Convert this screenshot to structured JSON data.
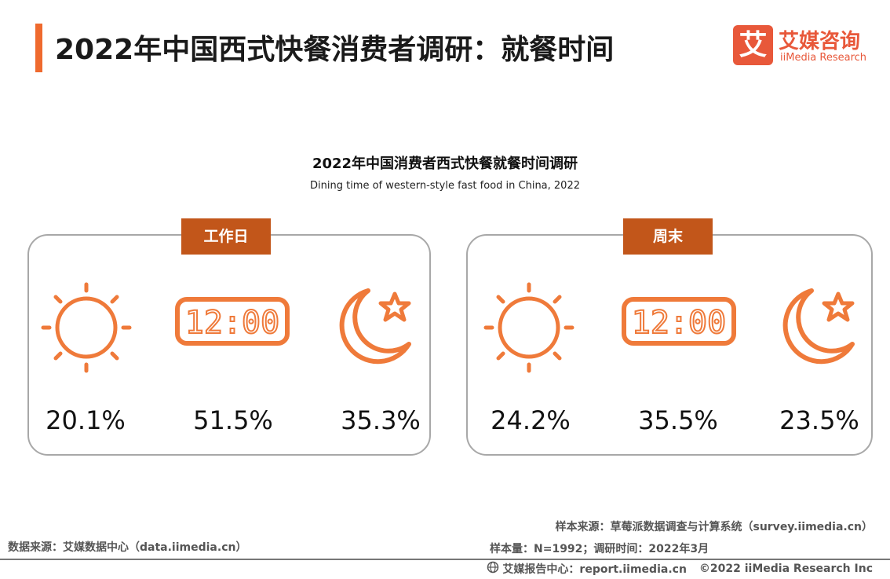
{
  "header": {
    "title": "2022年中国西式快餐消费者调研：就餐时间",
    "logo_mark": "艾",
    "logo_cn": "艾媒咨询",
    "logo_en": "iiMedia Research"
  },
  "chart_data": {
    "type": "table",
    "title": "2022年中国消费者西式快餐就餐时间调研",
    "subtitle": "Dining time of western-style fast food in China, 2022",
    "groups": [
      {
        "label": "工作日",
        "items": [
          {
            "icon": "sun-icon",
            "value": 20.1,
            "display": "20.1%"
          },
          {
            "icon": "clock-icon",
            "value": 51.5,
            "display": "51.5%"
          },
          {
            "icon": "moon-star-icon",
            "value": 35.3,
            "display": "35.3%"
          }
        ]
      },
      {
        "label": "周末",
        "items": [
          {
            "icon": "sun-icon",
            "value": 24.2,
            "display": "24.2%"
          },
          {
            "icon": "clock-icon",
            "value": 35.5,
            "display": "35.5%"
          },
          {
            "icon": "moon-star-icon",
            "value": 23.5,
            "display": "23.5%"
          }
        ]
      }
    ]
  },
  "clock_text": "12:00",
  "colors": {
    "accent": "#ef6a2e",
    "tab": "#c2561a",
    "icon": "#ef7a3a",
    "logo": "#e8583a"
  },
  "footer": {
    "data_source": "数据来源：艾媒数据中心（data.iimedia.cn）",
    "sample_source": "样本来源：草莓派数据调查与计算系统（survey.iimedia.cn）",
    "sample_size": "样本量：N=1992；调研时间：2022年3月",
    "report_center": "艾媒报告中心：report.iimedia.cn",
    "copyright": "©2022 iiMedia Research Inc"
  }
}
